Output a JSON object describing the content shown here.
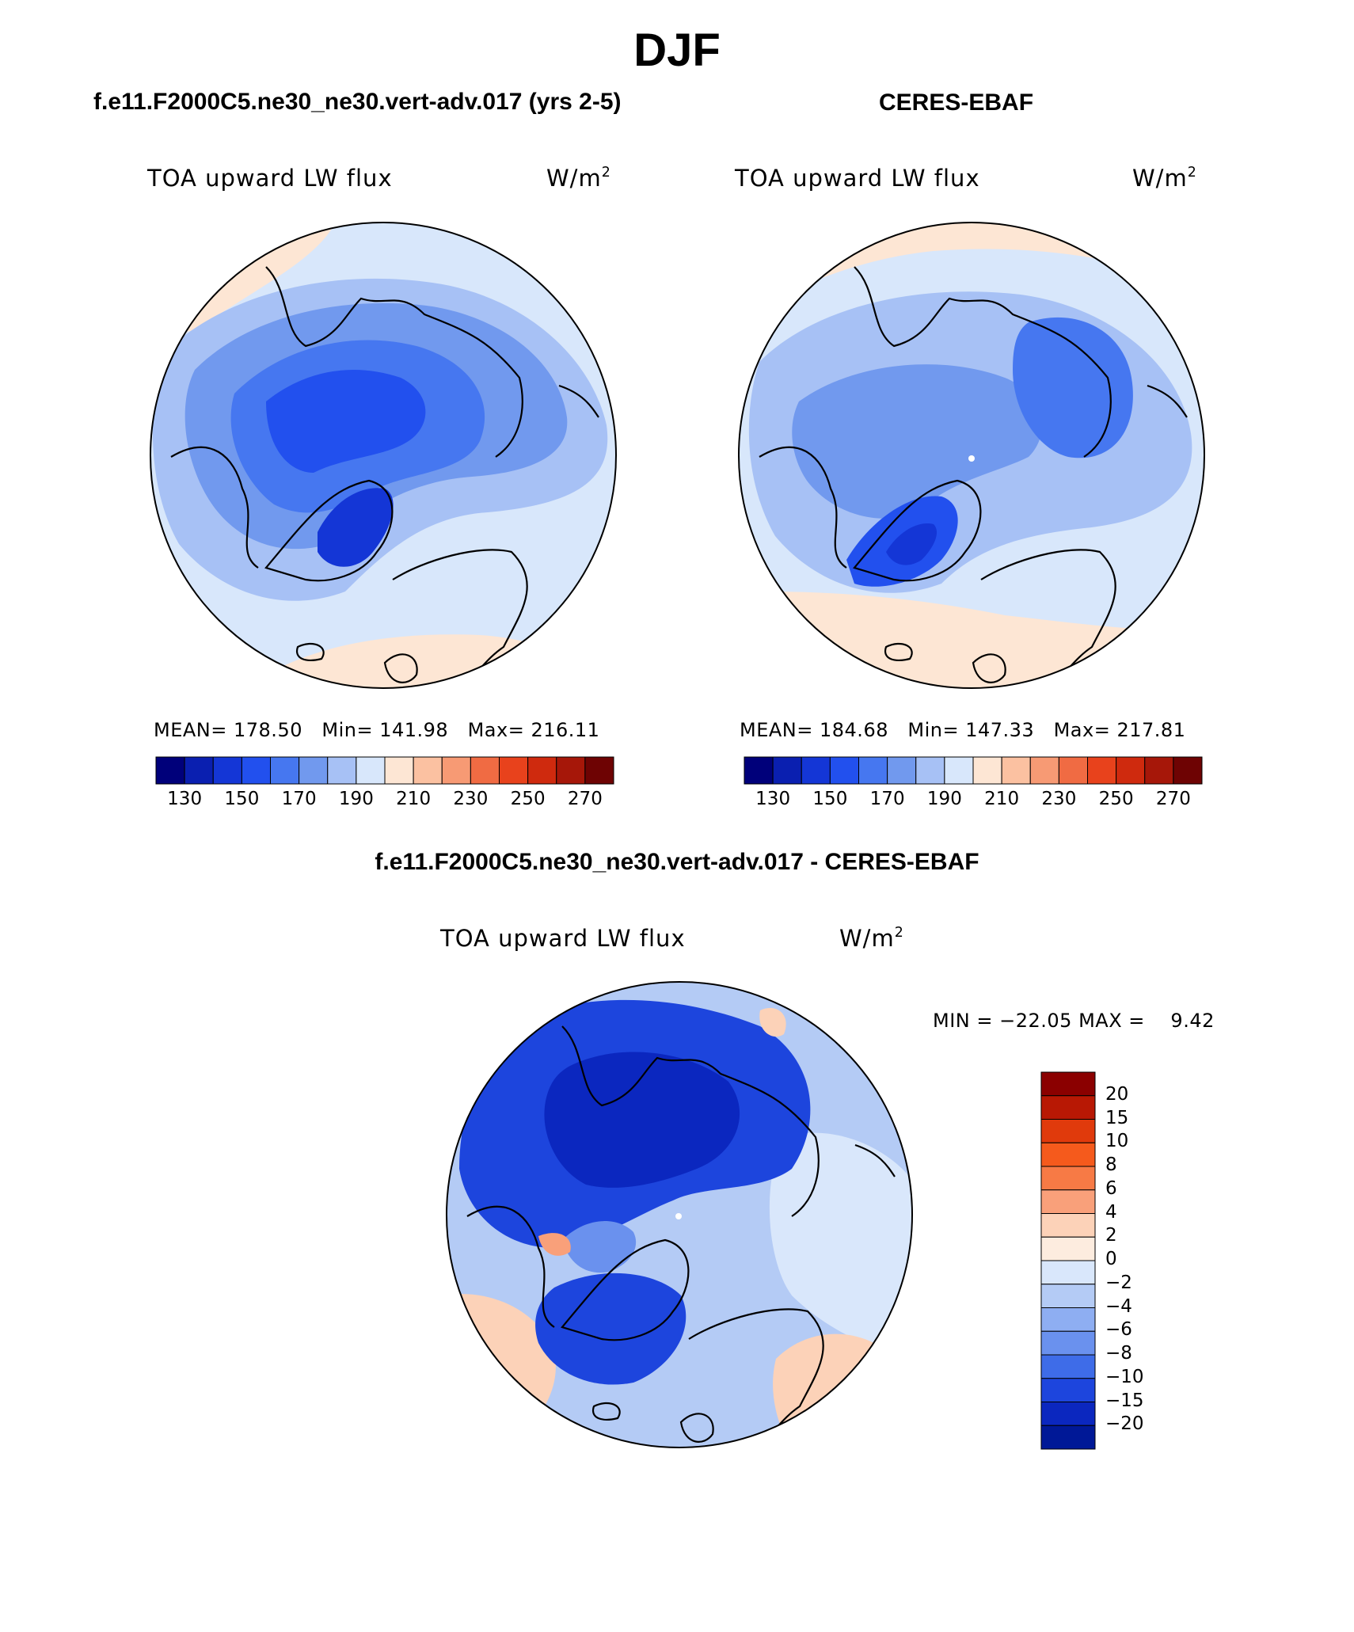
{
  "figure": {
    "title": "DJF"
  },
  "panels": [
    {
      "title": "f.e11.F2000C5.ne30_ne30.vert-adv.017 (yrs 2-5)",
      "variable": "TOA upward LW flux",
      "units_base": "W/m",
      "units_exp": "2",
      "stats": {
        "mean_label": "MEAN=",
        "mean": "178.50",
        "min_label": "Min=",
        "min": "141.98",
        "max_label": "Max=",
        "max": "216.11"
      }
    },
    {
      "title": "CERES-EBAF",
      "variable": "TOA upward LW flux",
      "units_base": "W/m",
      "units_exp": "2",
      "stats": {
        "mean_label": "MEAN=",
        "mean": "184.68",
        "min_label": "Min=",
        "min": "147.33",
        "max_label": "Max=",
        "max": "217.81"
      }
    },
    {
      "title": "f.e11.F2000C5.ne30_ne30.vert-adv.017 - CERES-EBAF",
      "variable": "TOA upward LW flux",
      "units_base": "W/m",
      "units_exp": "2",
      "stats": {
        "min_label": "MIN =",
        "min": "−22.05",
        "max_label": "MAX =",
        "max": "9.42"
      }
    }
  ],
  "chart_data": [
    {
      "type": "heatmap",
      "projection": "north-polar-stereographic",
      "title": "f.e11.F2000C5.ne30_ne30.vert-adv.017 (yrs 2-5)",
      "variable": "TOA upward LW flux",
      "units": "W/m2",
      "mean": 178.5,
      "min": 141.98,
      "max": 216.11,
      "colorbar": {
        "levels": [
          130,
          140,
          150,
          160,
          170,
          180,
          190,
          200,
          210,
          220,
          230,
          240,
          250,
          260,
          270
        ],
        "tick_labels": [
          "130",
          "150",
          "170",
          "190",
          "210",
          "230",
          "250",
          "270"
        ],
        "colors": [
          "#00007a",
          "#0a1fb0",
          "#1436d6",
          "#2250ee",
          "#4677f0",
          "#7199ee",
          "#a7c1f5",
          "#d8e7fb",
          "#fde6d4",
          "#fbc1a1",
          "#f79a74",
          "#f06b43",
          "#e8421c",
          "#cf2a0e",
          "#a61709",
          "#6e0303"
        ]
      }
    },
    {
      "type": "heatmap",
      "projection": "north-polar-stereographic",
      "title": "CERES-EBAF",
      "variable": "TOA upward LW flux",
      "units": "W/m2",
      "mean": 184.68,
      "min": 147.33,
      "max": 217.81,
      "colorbar": {
        "levels": [
          130,
          140,
          150,
          160,
          170,
          180,
          190,
          200,
          210,
          220,
          230,
          240,
          250,
          260,
          270
        ],
        "tick_labels": [
          "130",
          "150",
          "170",
          "190",
          "210",
          "230",
          "250",
          "270"
        ],
        "colors": [
          "#00007a",
          "#0a1fb0",
          "#1436d6",
          "#2250ee",
          "#4677f0",
          "#7199ee",
          "#a7c1f5",
          "#d8e7fb",
          "#fde6d4",
          "#fbc1a1",
          "#f79a74",
          "#f06b43",
          "#e8421c",
          "#cf2a0e",
          "#a61709",
          "#6e0303"
        ]
      }
    },
    {
      "type": "heatmap",
      "projection": "north-polar-stereographic",
      "title": "f.e11.F2000C5.ne30_ne30.vert-adv.017 - CERES-EBAF",
      "variable": "TOA upward LW flux",
      "units": "W/m2",
      "min": -22.05,
      "max": 9.42,
      "colorbar": {
        "orientation": "vertical",
        "tick_labels": [
          "20",
          "15",
          "10",
          "8",
          "6",
          "4",
          "2",
          "0",
          "−2",
          "−4",
          "−6",
          "−8",
          "−10",
          "−15",
          "−20"
        ],
        "colors": [
          "#8b0000",
          "#b81804",
          "#e03a0c",
          "#f55a1c",
          "#f77a45",
          "#f9a07a",
          "#fcd2b8",
          "#fdecdf",
          "#d9e7fb",
          "#b4cbf5",
          "#8eaef2",
          "#6a91ee",
          "#3e6ce8",
          "#1d45dd",
          "#0b27bf",
          "#001897"
        ]
      }
    }
  ]
}
